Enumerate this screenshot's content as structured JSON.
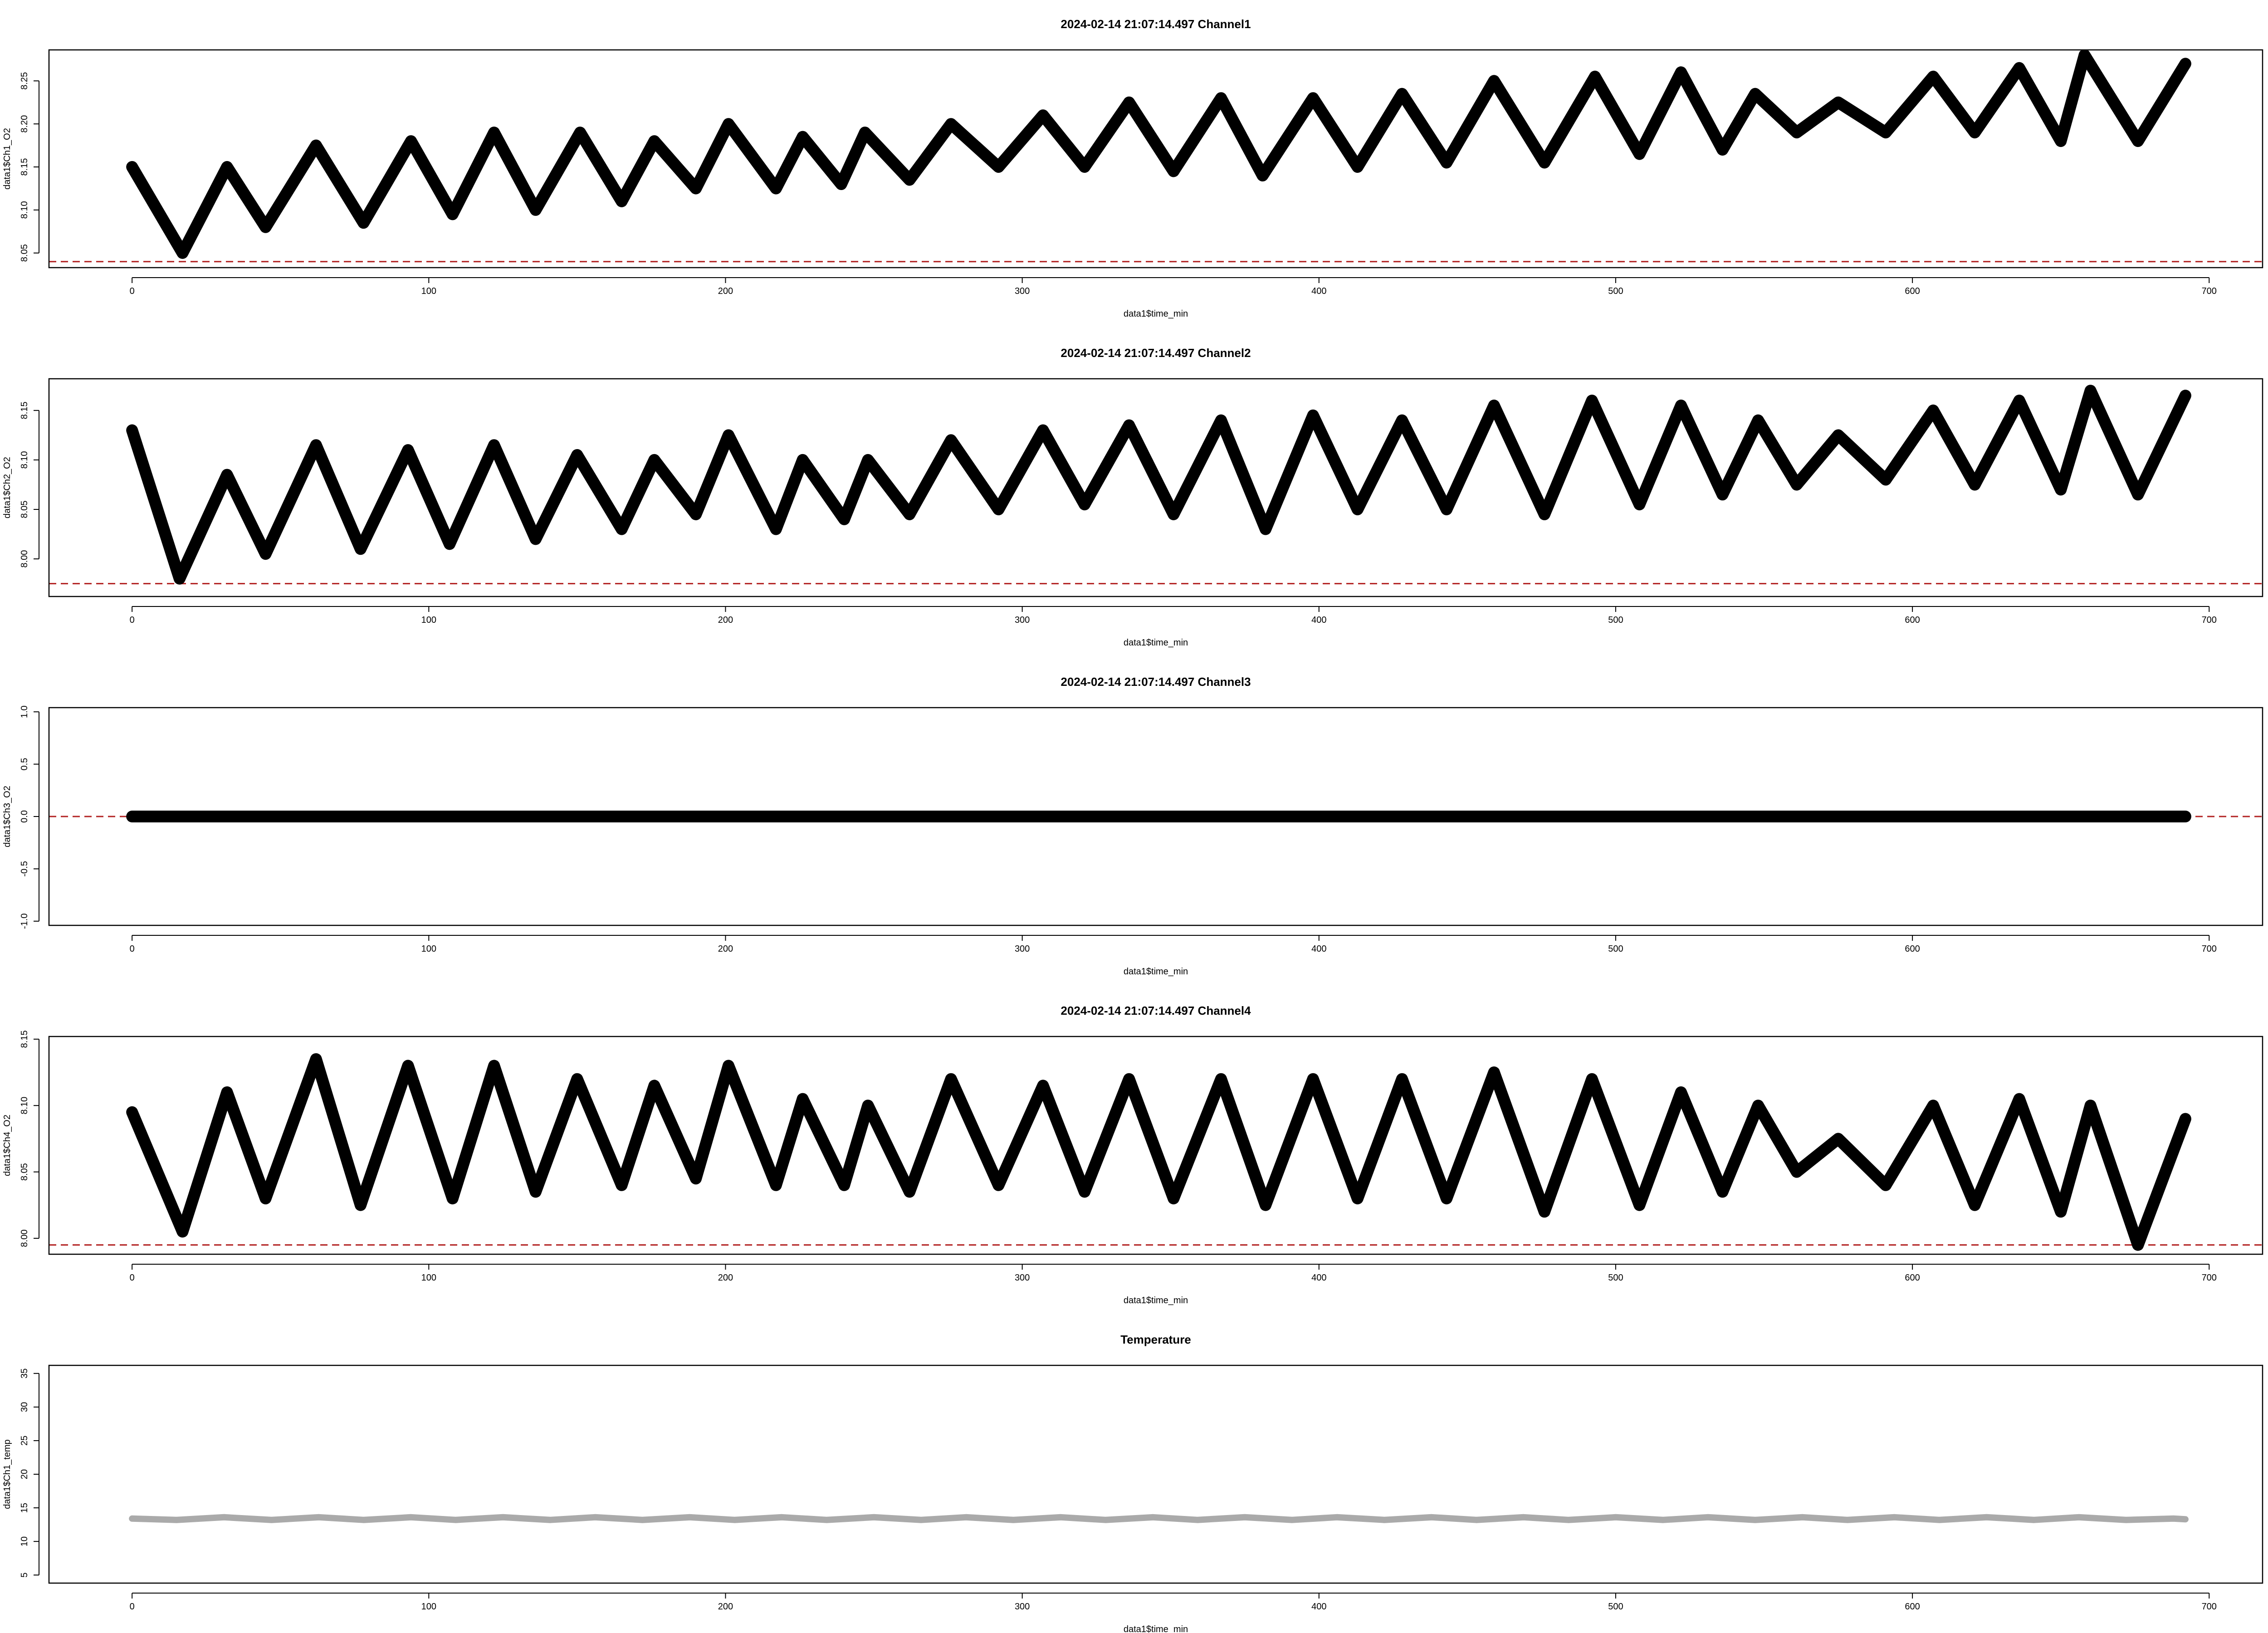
{
  "figure": {
    "panels": [
      {
        "title": "2024-02-14 21:07:14.497 Channel1",
        "xlabel": "data1$time_min",
        "ylabel": "data1$Ch1_O2",
        "xticks": [
          "0",
          "100",
          "200",
          "300",
          "400",
          "500",
          "600",
          "700"
        ],
        "yticks": [
          "8.05",
          "8.10",
          "8.15",
          "8.20",
          "8.25"
        ]
      },
      {
        "title": "2024-02-14 21:07:14.497 Channel2",
        "xlabel": "data1$time_min",
        "ylabel": "data1$Ch2_O2",
        "xticks": [
          "0",
          "100",
          "200",
          "300",
          "400",
          "500",
          "600",
          "700"
        ],
        "yticks": [
          "8.00",
          "8.05",
          "8.10",
          "8.15"
        ]
      },
      {
        "title": "2024-02-14 21:07:14.497 Channel3",
        "xlabel": "data1$time_min",
        "ylabel": "data1$Ch3_O2",
        "xticks": [
          "0",
          "100",
          "200",
          "300",
          "400",
          "500",
          "600",
          "700"
        ],
        "yticks": [
          "-1.0",
          "-0.5",
          "0.0",
          "0.5",
          "1.0"
        ]
      },
      {
        "title": "2024-02-14 21:07:14.497 Channel4",
        "xlabel": "data1$time_min",
        "ylabel": "data1$Ch4_O2",
        "xticks": [
          "0",
          "100",
          "200",
          "300",
          "400",
          "500",
          "600",
          "700"
        ],
        "yticks": [
          "8.00",
          "8.05",
          "8.10",
          "8.15"
        ]
      },
      {
        "title": "Temperature",
        "xlabel": "data1$time_min",
        "ylabel": "data1$Ch1_temp",
        "xticks": [
          "0",
          "100",
          "200",
          "300",
          "400",
          "500",
          "600",
          "700"
        ],
        "yticks": [
          "5",
          "10",
          "15",
          "20",
          "25",
          "30",
          "35"
        ]
      }
    ]
  },
  "chart_data": [
    {
      "type": "scatter",
      "title": "2024-02-14 21:07:14.497 Channel1",
      "xlabel": "data1$time_min",
      "ylabel": "data1$Ch1_O2",
      "xlim": [
        -28,
        718
      ],
      "ylim": [
        8.033,
        8.286
      ],
      "ref_hline": 8.04,
      "ref_color": "#b22222",
      "marker_color": "#000000",
      "x": [
        0,
        17,
        32,
        45,
        62,
        78,
        94,
        108,
        122,
        136,
        151,
        165,
        176,
        190,
        201,
        217,
        226,
        239,
        247,
        262,
        276,
        292,
        307,
        321,
        336,
        351,
        367,
        381,
        398,
        413,
        428,
        443,
        459,
        476,
        493,
        508,
        522,
        536,
        547,
        561,
        575,
        591,
        607,
        621,
        636,
        650,
        658,
        676,
        692
      ],
      "y": [
        8.15,
        8.05,
        8.15,
        8.08,
        8.175,
        8.085,
        8.18,
        8.095,
        8.19,
        8.1,
        8.19,
        8.11,
        8.18,
        8.125,
        8.2,
        8.125,
        8.185,
        8.13,
        8.19,
        8.135,
        8.2,
        8.15,
        8.21,
        8.15,
        8.225,
        8.145,
        8.23,
        8.14,
        8.23,
        8.15,
        8.235,
        8.155,
        8.25,
        8.155,
        8.255,
        8.165,
        8.26,
        8.17,
        8.235,
        8.19,
        8.225,
        8.19,
        8.255,
        8.19,
        8.265,
        8.18,
        8.28,
        8.18,
        8.27
      ]
    },
    {
      "type": "scatter",
      "title": "2024-02-14 21:07:14.497 Channel2",
      "xlabel": "data1$time_min",
      "ylabel": "data1$Ch2_O2",
      "xlim": [
        -28,
        718
      ],
      "ylim": [
        7.962,
        8.182
      ],
      "ref_hline": 7.975,
      "ref_color": "#b22222",
      "marker_color": "#000000",
      "x": [
        0,
        16,
        32,
        45,
        62,
        77,
        93,
        107,
        122,
        136,
        150,
        165,
        176,
        190,
        201,
        217,
        226,
        240,
        248,
        262,
        276,
        292,
        307,
        321,
        336,
        351,
        367,
        382,
        398,
        413,
        428,
        443,
        459,
        476,
        492,
        508,
        522,
        536,
        548,
        561,
        575,
        591,
        607,
        621,
        636,
        650,
        660,
        676,
        692
      ],
      "y": [
        8.13,
        7.98,
        8.085,
        8.005,
        8.115,
        8.01,
        8.11,
        8.015,
        8.115,
        8.02,
        8.105,
        8.03,
        8.1,
        8.045,
        8.125,
        8.03,
        8.1,
        8.04,
        8.1,
        8.045,
        8.12,
        8.05,
        8.13,
        8.055,
        8.135,
        8.045,
        8.14,
        8.03,
        8.145,
        8.05,
        8.14,
        8.05,
        8.155,
        8.045,
        8.16,
        8.055,
        8.155,
        8.065,
        8.14,
        8.075,
        8.125,
        8.08,
        8.15,
        8.075,
        8.16,
        8.07,
        8.17,
        8.065,
        8.165
      ]
    },
    {
      "type": "scatter",
      "title": "2024-02-14 21:07:14.497 Channel3",
      "xlabel": "data1$time_min",
      "ylabel": "data1$Ch3_O2",
      "xlim": [
        -28,
        718
      ],
      "ylim": [
        -1.04,
        1.04
      ],
      "ref_hline": 0.0,
      "ref_color": "#b22222",
      "marker_color": "#000000",
      "x": [
        0,
        692
      ],
      "y": [
        0.0,
        0.0
      ]
    },
    {
      "type": "scatter",
      "title": "2024-02-14 21:07:14.497 Channel4",
      "xlabel": "data1$time_min",
      "ylabel": "data1$Ch4_O2",
      "xlim": [
        -28,
        718
      ],
      "ylim": [
        7.988,
        8.152
      ],
      "ref_hline": 7.995,
      "ref_color": "#b22222",
      "marker_color": "#000000",
      "x": [
        0,
        17,
        32,
        45,
        62,
        77,
        93,
        108,
        122,
        136,
        150,
        165,
        176,
        190,
        201,
        217,
        226,
        240,
        248,
        262,
        276,
        292,
        307,
        321,
        336,
        351,
        367,
        382,
        398,
        413,
        428,
        443,
        459,
        476,
        492,
        508,
        522,
        536,
        548,
        561,
        575,
        591,
        607,
        621,
        636,
        650,
        660,
        676,
        692
      ],
      "y": [
        8.095,
        8.005,
        8.11,
        8.03,
        8.135,
        8.025,
        8.13,
        8.03,
        8.13,
        8.035,
        8.12,
        8.04,
        8.115,
        8.045,
        8.13,
        8.04,
        8.105,
        8.04,
        8.1,
        8.035,
        8.12,
        8.04,
        8.115,
        8.035,
        8.12,
        8.03,
        8.12,
        8.025,
        8.12,
        8.03,
        8.12,
        8.03,
        8.125,
        8.02,
        8.12,
        8.025,
        8.11,
        8.035,
        8.1,
        8.05,
        8.075,
        8.04,
        8.1,
        8.025,
        8.105,
        8.02,
        8.1,
        7.995,
        8.09
      ]
    },
    {
      "type": "line",
      "title": "Temperature",
      "xlabel": "data1$time_min",
      "ylabel": "data1$Ch1_temp",
      "xlim": [
        -28,
        718
      ],
      "ylim": [
        3.8,
        36.2
      ],
      "line_color": "#aaaaaa",
      "x": [
        0,
        15,
        31,
        47,
        63,
        78,
        94,
        109,
        125,
        141,
        156,
        172,
        188,
        203,
        219,
        234,
        250,
        266,
        281,
        297,
        313,
        328,
        344,
        359,
        375,
        391,
        406,
        422,
        438,
        453,
        469,
        484,
        500,
        516,
        531,
        547,
        563,
        578,
        594,
        609,
        625,
        641,
        656,
        672,
        688,
        692
      ],
      "y": [
        13.4,
        13.2,
        13.6,
        13.2,
        13.6,
        13.2,
        13.6,
        13.2,
        13.6,
        13.2,
        13.6,
        13.2,
        13.6,
        13.2,
        13.6,
        13.2,
        13.6,
        13.2,
        13.6,
        13.2,
        13.6,
        13.2,
        13.6,
        13.2,
        13.6,
        13.2,
        13.6,
        13.2,
        13.6,
        13.2,
        13.6,
        13.2,
        13.6,
        13.2,
        13.6,
        13.2,
        13.6,
        13.2,
        13.6,
        13.2,
        13.6,
        13.2,
        13.6,
        13.2,
        13.4,
        13.3
      ]
    }
  ]
}
